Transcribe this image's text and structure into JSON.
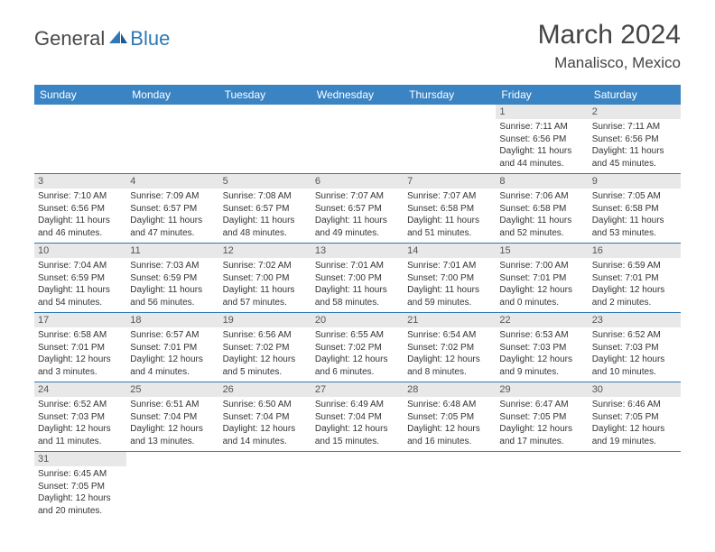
{
  "logo": {
    "general": "General",
    "blue": "Blue"
  },
  "title": "March 2024",
  "location": "Manalisco, Mexico",
  "colors": {
    "header_bg": "#3b84c4",
    "header_fg": "#ffffff",
    "daynum_bg": "#e8e8e8",
    "row_border": "#2f78b5",
    "logo_blue": "#2f78b5"
  },
  "day_headers": [
    "Sunday",
    "Monday",
    "Tuesday",
    "Wednesday",
    "Thursday",
    "Friday",
    "Saturday"
  ],
  "weeks": [
    [
      null,
      null,
      null,
      null,
      null,
      {
        "n": "1",
        "sr": "7:11 AM",
        "ss": "6:56 PM",
        "dl": "11 hours and 44 minutes."
      },
      {
        "n": "2",
        "sr": "7:11 AM",
        "ss": "6:56 PM",
        "dl": "11 hours and 45 minutes."
      }
    ],
    [
      {
        "n": "3",
        "sr": "7:10 AM",
        "ss": "6:56 PM",
        "dl": "11 hours and 46 minutes."
      },
      {
        "n": "4",
        "sr": "7:09 AM",
        "ss": "6:57 PM",
        "dl": "11 hours and 47 minutes."
      },
      {
        "n": "5",
        "sr": "7:08 AM",
        "ss": "6:57 PM",
        "dl": "11 hours and 48 minutes."
      },
      {
        "n": "6",
        "sr": "7:07 AM",
        "ss": "6:57 PM",
        "dl": "11 hours and 49 minutes."
      },
      {
        "n": "7",
        "sr": "7:07 AM",
        "ss": "6:58 PM",
        "dl": "11 hours and 51 minutes."
      },
      {
        "n": "8",
        "sr": "7:06 AM",
        "ss": "6:58 PM",
        "dl": "11 hours and 52 minutes."
      },
      {
        "n": "9",
        "sr": "7:05 AM",
        "ss": "6:58 PM",
        "dl": "11 hours and 53 minutes."
      }
    ],
    [
      {
        "n": "10",
        "sr": "7:04 AM",
        "ss": "6:59 PM",
        "dl": "11 hours and 54 minutes."
      },
      {
        "n": "11",
        "sr": "7:03 AM",
        "ss": "6:59 PM",
        "dl": "11 hours and 56 minutes."
      },
      {
        "n": "12",
        "sr": "7:02 AM",
        "ss": "7:00 PM",
        "dl": "11 hours and 57 minutes."
      },
      {
        "n": "13",
        "sr": "7:01 AM",
        "ss": "7:00 PM",
        "dl": "11 hours and 58 minutes."
      },
      {
        "n": "14",
        "sr": "7:01 AM",
        "ss": "7:00 PM",
        "dl": "11 hours and 59 minutes."
      },
      {
        "n": "15",
        "sr": "7:00 AM",
        "ss": "7:01 PM",
        "dl": "12 hours and 0 minutes."
      },
      {
        "n": "16",
        "sr": "6:59 AM",
        "ss": "7:01 PM",
        "dl": "12 hours and 2 minutes."
      }
    ],
    [
      {
        "n": "17",
        "sr": "6:58 AM",
        "ss": "7:01 PM",
        "dl": "12 hours and 3 minutes."
      },
      {
        "n": "18",
        "sr": "6:57 AM",
        "ss": "7:01 PM",
        "dl": "12 hours and 4 minutes."
      },
      {
        "n": "19",
        "sr": "6:56 AM",
        "ss": "7:02 PM",
        "dl": "12 hours and 5 minutes."
      },
      {
        "n": "20",
        "sr": "6:55 AM",
        "ss": "7:02 PM",
        "dl": "12 hours and 6 minutes."
      },
      {
        "n": "21",
        "sr": "6:54 AM",
        "ss": "7:02 PM",
        "dl": "12 hours and 8 minutes."
      },
      {
        "n": "22",
        "sr": "6:53 AM",
        "ss": "7:03 PM",
        "dl": "12 hours and 9 minutes."
      },
      {
        "n": "23",
        "sr": "6:52 AM",
        "ss": "7:03 PM",
        "dl": "12 hours and 10 minutes."
      }
    ],
    [
      {
        "n": "24",
        "sr": "6:52 AM",
        "ss": "7:03 PM",
        "dl": "12 hours and 11 minutes."
      },
      {
        "n": "25",
        "sr": "6:51 AM",
        "ss": "7:04 PM",
        "dl": "12 hours and 13 minutes."
      },
      {
        "n": "26",
        "sr": "6:50 AM",
        "ss": "7:04 PM",
        "dl": "12 hours and 14 minutes."
      },
      {
        "n": "27",
        "sr": "6:49 AM",
        "ss": "7:04 PM",
        "dl": "12 hours and 15 minutes."
      },
      {
        "n": "28",
        "sr": "6:48 AM",
        "ss": "7:05 PM",
        "dl": "12 hours and 16 minutes."
      },
      {
        "n": "29",
        "sr": "6:47 AM",
        "ss": "7:05 PM",
        "dl": "12 hours and 17 minutes."
      },
      {
        "n": "30",
        "sr": "6:46 AM",
        "ss": "7:05 PM",
        "dl": "12 hours and 19 minutes."
      }
    ],
    [
      {
        "n": "31",
        "sr": "6:45 AM",
        "ss": "7:05 PM",
        "dl": "12 hours and 20 minutes."
      },
      null,
      null,
      null,
      null,
      null,
      null
    ]
  ],
  "labels": {
    "sunrise": "Sunrise:",
    "sunset": "Sunset:",
    "daylight": "Daylight:"
  }
}
